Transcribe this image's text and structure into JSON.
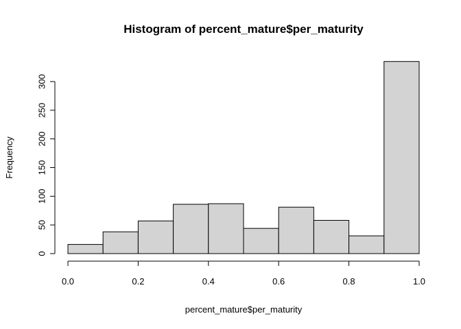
{
  "chart_data": {
    "type": "bar",
    "title": "Histogram of percent_mature$per_maturity",
    "xlabel": "percent_mature$per_maturity",
    "ylabel": "Frequency",
    "bins": [
      {
        "from": 0.0,
        "to": 0.1,
        "count": 16
      },
      {
        "from": 0.1,
        "to": 0.2,
        "count": 38
      },
      {
        "from": 0.2,
        "to": 0.3,
        "count": 57
      },
      {
        "from": 0.3,
        "to": 0.4,
        "count": 86
      },
      {
        "from": 0.4,
        "to": 0.5,
        "count": 87
      },
      {
        "from": 0.5,
        "to": 0.6,
        "count": 44
      },
      {
        "from": 0.6,
        "to": 0.7,
        "count": 81
      },
      {
        "from": 0.7,
        "to": 0.8,
        "count": 58
      },
      {
        "from": 0.8,
        "to": 0.9,
        "count": 31
      },
      {
        "from": 0.9,
        "to": 1.0,
        "count": 335
      }
    ],
    "xlim": [
      0,
      1
    ],
    "ylim": [
      0,
      335
    ],
    "x_ticks": [
      "0.0",
      "0.2",
      "0.4",
      "0.6",
      "0.8",
      "1.0"
    ],
    "y_ticks": [
      "0",
      "50",
      "100",
      "150",
      "200",
      "250",
      "300"
    ],
    "bar_fill": "#d3d3d3",
    "bar_stroke": "#000000",
    "grid": false,
    "legend": "none"
  }
}
